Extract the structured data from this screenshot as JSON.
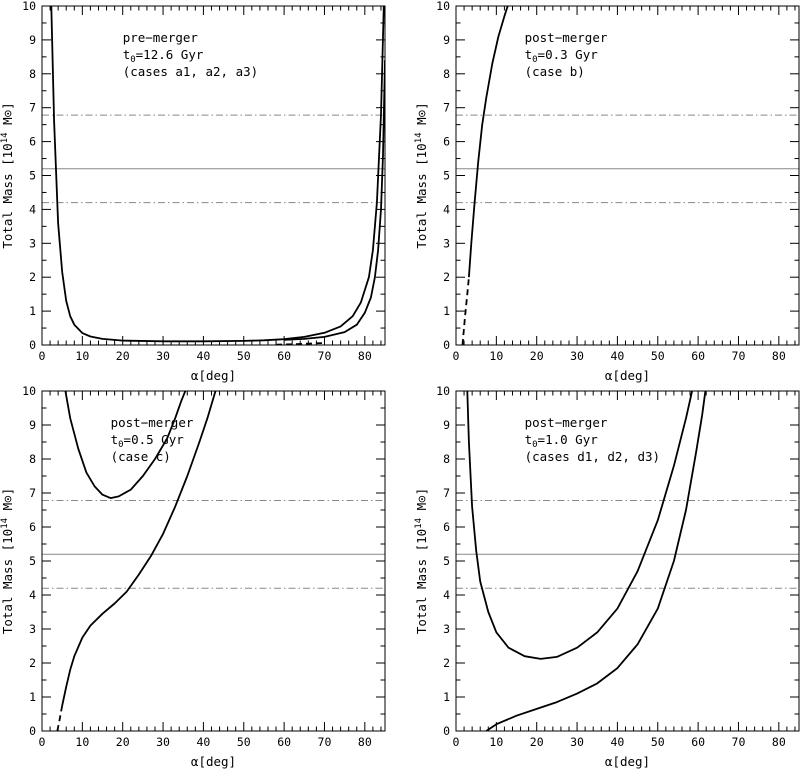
{
  "chart_data": [
    {
      "type": "line",
      "panel": "top-left",
      "xlabel": "α[deg]",
      "ylabel": "Total Mass [10^14 M⊙]",
      "xlim": [
        0,
        85
      ],
      "ylim": [
        0,
        10
      ],
      "xticks": [
        "0",
        "10",
        "20",
        "30",
        "40",
        "50",
        "60",
        "70",
        "80"
      ],
      "yticks": [
        "0",
        "1",
        "2",
        "3",
        "4",
        "5",
        "6",
        "7",
        "8",
        "9",
        "10"
      ],
      "annotation": [
        "pre−merger",
        "t0=12.6 Gyr",
        "(cases a1, a2, a3)"
      ],
      "reference_lines": [
        {
          "y": 6.78,
          "style": "dash-dot"
        },
        {
          "y": 5.2,
          "style": "solid"
        },
        {
          "y": 4.2,
          "style": "dash-dot"
        }
      ],
      "series": [
        {
          "style": "solid",
          "points": [
            [
              2.3,
              10
            ],
            [
              3,
              6.6
            ],
            [
              4,
              3.6
            ],
            [
              5,
              2.15
            ],
            [
              6,
              1.3
            ],
            [
              7,
              0.85
            ],
            [
              8,
              0.6
            ],
            [
              10,
              0.35
            ],
            [
              12,
              0.25
            ],
            [
              15,
              0.18
            ],
            [
              20,
              0.13
            ],
            [
              30,
              0.11
            ],
            [
              40,
              0.11
            ],
            [
              50,
              0.12
            ],
            [
              55,
              0.14
            ],
            [
              60,
              0.17
            ],
            [
              65,
              0.24
            ],
            [
              70,
              0.36
            ],
            [
              74,
              0.55
            ],
            [
              77,
              0.85
            ],
            [
              79,
              1.25
            ],
            [
              81,
              2.0
            ],
            [
              82,
              2.8
            ],
            [
              83,
              4.2
            ],
            [
              84,
              6.8
            ],
            [
              84.7,
              10
            ]
          ]
        },
        {
          "style": "solid",
          "points": [
            [
              60,
              0.15
            ],
            [
              65,
              0.18
            ],
            [
              70,
              0.24
            ],
            [
              75,
              0.38
            ],
            [
              78,
              0.6
            ],
            [
              80,
              0.95
            ],
            [
              81.5,
              1.4
            ],
            [
              82.5,
              2.0
            ],
            [
              83.3,
              2.8
            ],
            [
              84,
              4.0
            ],
            [
              84.5,
              5.6
            ],
            [
              85,
              8.4
            ]
          ]
        },
        {
          "style": "dashed",
          "points": [
            [
              58,
              0.01
            ],
            [
              62,
              0.02
            ],
            [
              66,
              0.04
            ],
            [
              70,
              0.06
            ]
          ]
        }
      ]
    },
    {
      "type": "line",
      "panel": "top-right",
      "xlabel": "α[deg]",
      "ylabel": "Total Mass [10^14 M⊙]",
      "xlim": [
        0,
        85
      ],
      "ylim": [
        0,
        10
      ],
      "xticks": [
        "0",
        "10",
        "20",
        "30",
        "40",
        "50",
        "60",
        "70",
        "80"
      ],
      "yticks": [
        "0",
        "1",
        "2",
        "3",
        "4",
        "5",
        "6",
        "7",
        "8",
        "9",
        "10"
      ],
      "annotation": [
        "post−merger",
        "t0=0.3 Gyr",
        "(case b)"
      ],
      "reference_lines": [
        {
          "y": 6.78,
          "style": "dash-dot"
        },
        {
          "y": 5.2,
          "style": "solid"
        },
        {
          "y": 4.2,
          "style": "dash-dot"
        }
      ],
      "series": [
        {
          "style": "solid",
          "points": [
            [
              3.2,
              2.0
            ],
            [
              3.8,
              3.0
            ],
            [
              4.6,
              4.2
            ],
            [
              5.5,
              5.4
            ],
            [
              6.5,
              6.5
            ],
            [
              7.5,
              7.3
            ],
            [
              9,
              8.3
            ],
            [
              10.5,
              9.1
            ],
            [
              12,
              9.7
            ],
            [
              12.8,
              10
            ]
          ]
        },
        {
          "style": "dashed",
          "points": [
            [
              1.6,
              0
            ],
            [
              2.2,
              0.8
            ],
            [
              2.8,
              1.5
            ],
            [
              3.2,
              2.0
            ]
          ]
        }
      ]
    },
    {
      "type": "line",
      "panel": "bottom-left",
      "xlabel": "α[deg]",
      "ylabel": "Total Mass [10^14 M⊙]",
      "xlim": [
        0,
        85
      ],
      "ylim": [
        0,
        10
      ],
      "xticks": [
        "0",
        "10",
        "20",
        "30",
        "40",
        "50",
        "60",
        "70",
        "80"
      ],
      "yticks": [
        "0",
        "1",
        "2",
        "3",
        "4",
        "5",
        "6",
        "7",
        "8",
        "9",
        "10"
      ],
      "annotation": [
        "post−merger",
        "t0=0.5 Gyr",
        "(case c)"
      ],
      "reference_lines": [
        {
          "y": 6.78,
          "style": "dash-dot"
        },
        {
          "y": 5.2,
          "style": "solid"
        },
        {
          "y": 4.2,
          "style": "dash-dot"
        }
      ],
      "series": [
        {
          "style": "solid",
          "points": [
            [
              5.8,
              10
            ],
            [
              7,
              9.2
            ],
            [
              9,
              8.3
            ],
            [
              11,
              7.6
            ],
            [
              13,
              7.2
            ],
            [
              15,
              6.95
            ],
            [
              17,
              6.85
            ],
            [
              19,
              6.9
            ],
            [
              22,
              7.1
            ],
            [
              25,
              7.5
            ],
            [
              28,
              8.0
            ],
            [
              31,
              8.6
            ],
            [
              33,
              9.2
            ],
            [
              34.5,
              9.7
            ],
            [
              35.5,
              10
            ]
          ]
        },
        {
          "style": "solid",
          "points": [
            [
              5,
              0.75
            ],
            [
              6,
              1.3
            ],
            [
              7,
              1.8
            ],
            [
              8,
              2.2
            ],
            [
              10,
              2.75
            ],
            [
              12,
              3.1
            ],
            [
              15,
              3.45
            ],
            [
              18,
              3.75
            ],
            [
              21,
              4.1
            ],
            [
              24,
              4.6
            ],
            [
              27,
              5.15
            ],
            [
              30,
              5.8
            ],
            [
              33,
              6.6
            ],
            [
              36,
              7.5
            ],
            [
              39,
              8.5
            ],
            [
              41,
              9.2
            ],
            [
              43,
              10
            ]
          ]
        },
        {
          "style": "dashed",
          "points": [
            [
              3.8,
              0
            ],
            [
              4.3,
              0.3
            ],
            [
              5,
              0.75
            ]
          ]
        }
      ]
    },
    {
      "type": "line",
      "panel": "bottom-right",
      "xlabel": "α[deg]",
      "ylabel": "Total Mass [10^14 M⊙]",
      "xlim": [
        0,
        85
      ],
      "ylim": [
        0,
        10
      ],
      "xticks": [
        "0",
        "10",
        "20",
        "30",
        "40",
        "50",
        "60",
        "70",
        "80"
      ],
      "yticks": [
        "0",
        "1",
        "2",
        "3",
        "4",
        "5",
        "6",
        "7",
        "8",
        "9",
        "10"
      ],
      "annotation": [
        "post−merger",
        "t0=1.0 Gyr",
        "(cases d1, d2, d3)"
      ],
      "reference_lines": [
        {
          "y": 6.78,
          "style": "dash-dot"
        },
        {
          "y": 5.2,
          "style": "solid"
        },
        {
          "y": 4.2,
          "style": "dash-dot"
        }
      ],
      "series": [
        {
          "style": "solid",
          "points": [
            [
              2.8,
              10
            ],
            [
              3.2,
              8.5
            ],
            [
              4,
              6.6
            ],
            [
              5,
              5.3
            ],
            [
              6,
              4.4
            ],
            [
              8,
              3.5
            ],
            [
              10,
              2.9
            ],
            [
              13,
              2.45
            ],
            [
              17,
              2.2
            ],
            [
              21,
              2.12
            ],
            [
              25,
              2.18
            ],
            [
              30,
              2.45
            ],
            [
              35,
              2.9
            ],
            [
              40,
              3.6
            ],
            [
              45,
              4.7
            ],
            [
              50,
              6.2
            ],
            [
              54,
              7.8
            ],
            [
              57,
              9.2
            ],
            [
              58.5,
              10
            ]
          ]
        },
        {
          "style": "solid",
          "points": [
            [
              7.5,
              0
            ],
            [
              10,
              0.2
            ],
            [
              15,
              0.45
            ],
            [
              20,
              0.65
            ],
            [
              25,
              0.85
            ],
            [
              30,
              1.1
            ],
            [
              35,
              1.4
            ],
            [
              40,
              1.85
            ],
            [
              45,
              2.55
            ],
            [
              50,
              3.6
            ],
            [
              54,
              5.0
            ],
            [
              57,
              6.5
            ],
            [
              59.5,
              8.2
            ],
            [
              61,
              9.3
            ],
            [
              61.8,
              10
            ]
          ]
        }
      ]
    }
  ]
}
